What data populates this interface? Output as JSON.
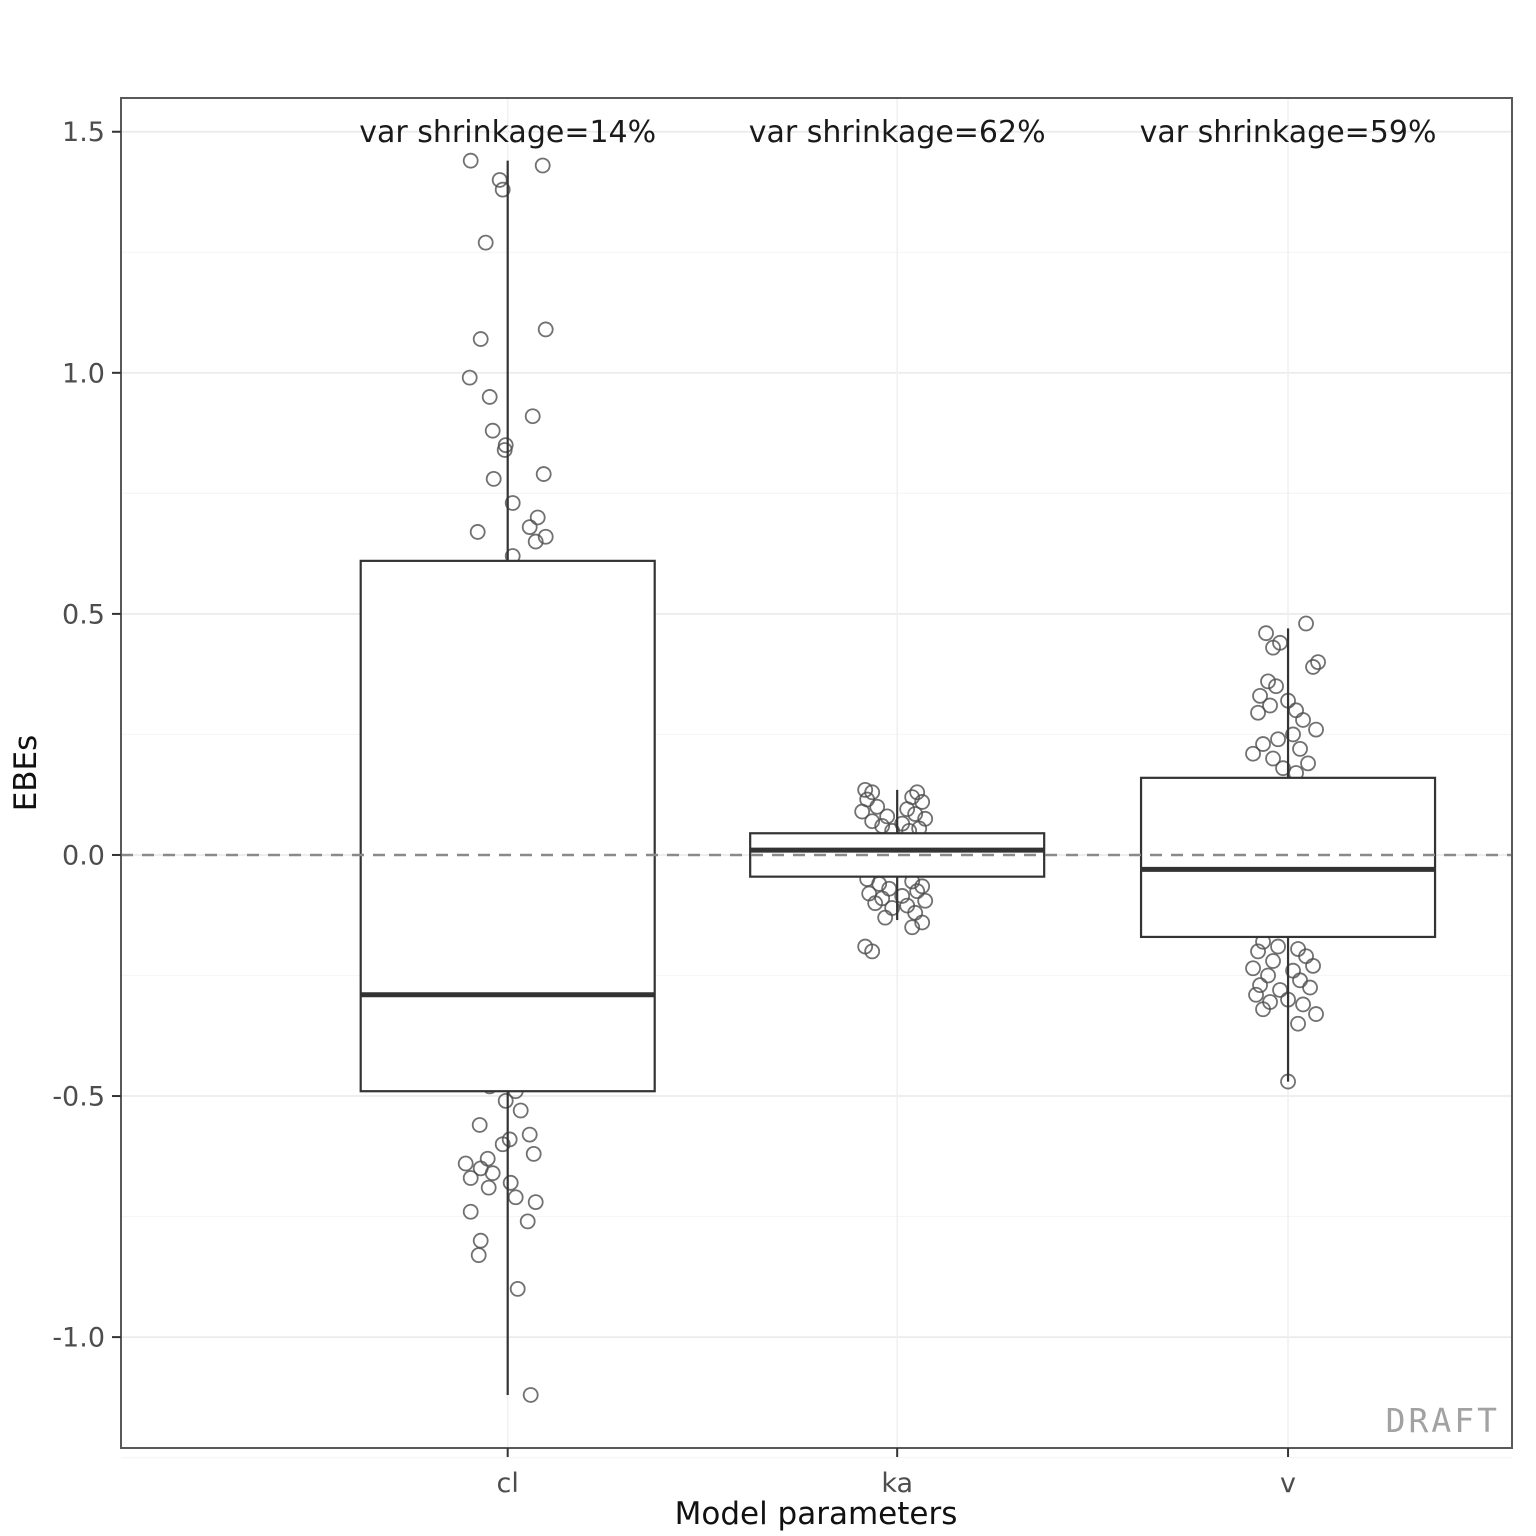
{
  "watermark": "DRAFT",
  "colors": {
    "box_stroke": "#333333",
    "median_stroke": "#333333",
    "point_stroke": "#4d4d4d",
    "grid_major": "#ebebeb",
    "grid_minor": "#f6f6f6",
    "reference": "#8a8a8a",
    "panel_border": "#595959",
    "tick_mark": "#333333",
    "box_fill": "#ffffff"
  },
  "chart_data": {
    "type": "boxplot",
    "title": "",
    "xlabel": "Model parameters",
    "ylabel": "EBEs",
    "categories": [
      "cl",
      "ka",
      "v"
    ],
    "annotations": [
      "var shrinkage=14%",
      "var shrinkage=62%",
      "var shrinkage=59%"
    ],
    "ylim": [
      -1.23,
      1.57
    ],
    "yticks": [
      {
        "v": 1.5,
        "label": "1.5"
      },
      {
        "v": 1.0,
        "label": "1.0"
      },
      {
        "v": 0.5,
        "label": "0.5"
      },
      {
        "v": 0.0,
        "label": "0.0"
      },
      {
        "v": -0.5,
        "label": "-0.5"
      },
      {
        "v": -1.0,
        "label": "-1.0"
      }
    ],
    "reference_line_y": 0,
    "grid": true,
    "legend": false,
    "boxes": [
      {
        "category": "cl",
        "whisker_low": -1.12,
        "q1": -0.49,
        "median": -0.29,
        "q3": 0.61,
        "whisker_high": 1.44
      },
      {
        "category": "ka",
        "whisker_low": -0.135,
        "q1": -0.045,
        "median": 0.01,
        "q3": 0.045,
        "whisker_high": 0.135
      },
      {
        "category": "v",
        "whisker_low": -0.47,
        "q1": -0.17,
        "median": -0.03,
        "q3": 0.16,
        "whisker_high": 0.47
      }
    ],
    "points": [
      {
        "category": "cl",
        "pts": [
          [
            -37,
            1.44
          ],
          [
            35,
            1.43
          ],
          [
            -8,
            1.4
          ],
          [
            -5,
            1.38
          ],
          [
            -22,
            1.27
          ],
          [
            38,
            1.09
          ],
          [
            -27,
            1.07
          ],
          [
            -38,
            0.99
          ],
          [
            -18,
            0.95
          ],
          [
            25,
            0.91
          ],
          [
            -15,
            0.88
          ],
          [
            -2,
            0.85
          ],
          [
            -3,
            0.84
          ],
          [
            36,
            0.79
          ],
          [
            -14,
            0.78
          ],
          [
            5,
            0.73
          ],
          [
            30,
            0.7
          ],
          [
            22,
            0.68
          ],
          [
            -30,
            0.67
          ],
          [
            38,
            0.66
          ],
          [
            28,
            0.65
          ],
          [
            5,
            0.62
          ],
          [
            -18,
            -0.48
          ],
          [
            8,
            -0.49
          ],
          [
            -2,
            -0.51
          ],
          [
            13,
            -0.53
          ],
          [
            -28,
            -0.56
          ],
          [
            22,
            -0.58
          ],
          [
            2,
            -0.59
          ],
          [
            -5,
            -0.6
          ],
          [
            26,
            -0.62
          ],
          [
            -20,
            -0.63
          ],
          [
            -42,
            -0.64
          ],
          [
            -27,
            -0.65
          ],
          [
            -15,
            -0.66
          ],
          [
            -37,
            -0.67
          ],
          [
            3,
            -0.68
          ],
          [
            -19,
            -0.69
          ],
          [
            8,
            -0.71
          ],
          [
            28,
            -0.72
          ],
          [
            -37,
            -0.74
          ],
          [
            20,
            -0.76
          ],
          [
            -27,
            -0.8
          ],
          [
            -29,
            -0.83
          ],
          [
            10,
            -0.9
          ],
          [
            23,
            -1.12
          ]
        ]
      },
      {
        "category": "ka",
        "pts": [
          [
            -32,
            0.135
          ],
          [
            -25,
            0.13
          ],
          [
            20,
            0.13
          ],
          [
            15,
            0.12
          ],
          [
            -30,
            0.115
          ],
          [
            25,
            0.11
          ],
          [
            -20,
            0.1
          ],
          [
            10,
            0.095
          ],
          [
            -35,
            0.09
          ],
          [
            18,
            0.085
          ],
          [
            -10,
            0.08
          ],
          [
            28,
            0.075
          ],
          [
            -25,
            0.07
          ],
          [
            5,
            0.065
          ],
          [
            -15,
            0.06
          ],
          [
            22,
            0.055
          ],
          [
            -5,
            0.05
          ],
          [
            12,
            0.05
          ],
          [
            -30,
            -0.05
          ],
          [
            15,
            -0.055
          ],
          [
            -18,
            -0.06
          ],
          [
            25,
            -0.065
          ],
          [
            -8,
            -0.07
          ],
          [
            20,
            -0.075
          ],
          [
            -28,
            -0.08
          ],
          [
            5,
            -0.085
          ],
          [
            -15,
            -0.09
          ],
          [
            28,
            -0.095
          ],
          [
            -22,
            -0.1
          ],
          [
            10,
            -0.105
          ],
          [
            -5,
            -0.11
          ],
          [
            18,
            -0.12
          ],
          [
            -12,
            -0.13
          ],
          [
            25,
            -0.14
          ],
          [
            15,
            -0.15
          ],
          [
            -32,
            -0.19
          ],
          [
            -25,
            -0.2
          ]
        ]
      },
      {
        "category": "v",
        "pts": [
          [
            18,
            0.48
          ],
          [
            -22,
            0.46
          ],
          [
            -8,
            0.44
          ],
          [
            -15,
            0.43
          ],
          [
            30,
            0.4
          ],
          [
            25,
            0.39
          ],
          [
            -20,
            0.36
          ],
          [
            -12,
            0.35
          ],
          [
            -28,
            0.33
          ],
          [
            0,
            0.32
          ],
          [
            -18,
            0.31
          ],
          [
            8,
            0.3
          ],
          [
            -30,
            0.295
          ],
          [
            15,
            0.28
          ],
          [
            28,
            0.26
          ],
          [
            5,
            0.25
          ],
          [
            -10,
            0.24
          ],
          [
            -25,
            0.23
          ],
          [
            12,
            0.22
          ],
          [
            -35,
            0.21
          ],
          [
            -15,
            0.2
          ],
          [
            20,
            0.19
          ],
          [
            -5,
            0.18
          ],
          [
            8,
            0.17
          ],
          [
            -25,
            -0.18
          ],
          [
            -10,
            -0.19
          ],
          [
            10,
            -0.195
          ],
          [
            -30,
            -0.2
          ],
          [
            18,
            -0.21
          ],
          [
            -15,
            -0.22
          ],
          [
            25,
            -0.23
          ],
          [
            -35,
            -0.235
          ],
          [
            5,
            -0.24
          ],
          [
            -20,
            -0.25
          ],
          [
            12,
            -0.26
          ],
          [
            -28,
            -0.27
          ],
          [
            22,
            -0.275
          ],
          [
            -8,
            -0.28
          ],
          [
            -32,
            -0.29
          ],
          [
            0,
            -0.3
          ],
          [
            -18,
            -0.305
          ],
          [
            15,
            -0.31
          ],
          [
            -25,
            -0.32
          ],
          [
            28,
            -0.33
          ],
          [
            10,
            -0.35
          ],
          [
            0,
            -0.47
          ]
        ]
      }
    ]
  }
}
